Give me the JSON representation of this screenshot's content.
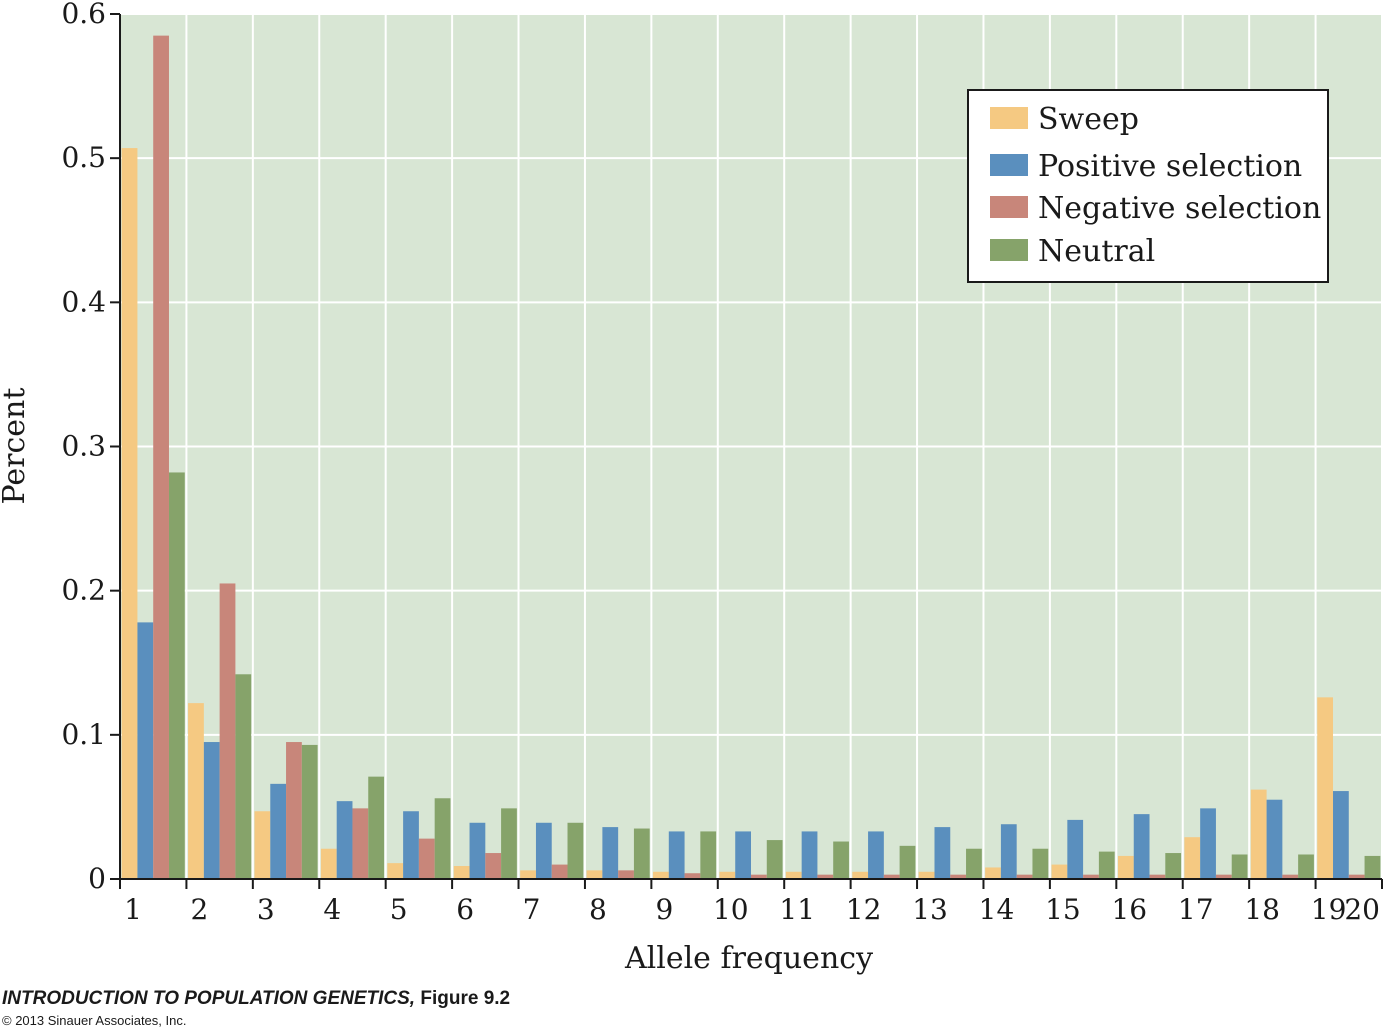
{
  "chart_data": {
    "type": "bar",
    "xlabel": "Allele frequency",
    "ylabel": "Percent",
    "x_ticks": [
      "1",
      "2",
      "3",
      "4",
      "5",
      "6",
      "7",
      "8",
      "9",
      "10",
      "11",
      "12",
      "13",
      "14",
      "15",
      "16",
      "17",
      "18",
      "19",
      "20"
    ],
    "y_ticks": [
      "0",
      "0.1",
      "0.2",
      "0.3",
      "0.4",
      "0.5",
      "0.6"
    ],
    "ylim": [
      0,
      0.6
    ],
    "grid": true,
    "legend_position": "top-right",
    "categories": [
      "1",
      "2",
      "3",
      "4",
      "5",
      "6",
      "7",
      "8",
      "9",
      "10",
      "11",
      "12",
      "13",
      "14",
      "15",
      "16",
      "17",
      "18",
      "19"
    ],
    "series": [
      {
        "name": "Sweep",
        "color": "#f5c982",
        "values": [
          0.507,
          0.122,
          0.047,
          0.021,
          0.011,
          0.009,
          0.006,
          0.006,
          0.005,
          0.005,
          0.005,
          0.005,
          0.005,
          0.008,
          0.01,
          0.016,
          0.029,
          0.062,
          0.126
        ]
      },
      {
        "name": "Positive selection",
        "color": "#5a8fbe",
        "values": [
          0.178,
          0.095,
          0.066,
          0.054,
          0.047,
          0.039,
          0.039,
          0.036,
          0.033,
          0.033,
          0.033,
          0.033,
          0.036,
          0.038,
          0.041,
          0.045,
          0.049,
          0.055,
          0.061
        ]
      },
      {
        "name": "Negative selection",
        "color": "#c8867a",
        "values": [
          0.585,
          0.205,
          0.095,
          0.049,
          0.028,
          0.018,
          0.01,
          0.006,
          0.004,
          0.003,
          0.003,
          0.003,
          0.003,
          0.003,
          0.003,
          0.003,
          0.003,
          0.003,
          0.003
        ]
      },
      {
        "name": "Neutral",
        "color": "#86a36a",
        "values": [
          0.282,
          0.142,
          0.093,
          0.071,
          0.056,
          0.049,
          0.039,
          0.035,
          0.033,
          0.027,
          0.026,
          0.023,
          0.021,
          0.021,
          0.019,
          0.018,
          0.017,
          0.017,
          0.016
        ]
      }
    ],
    "background_color": "#d8e6d4",
    "grid_color": "#ffffff"
  },
  "footer": {
    "title": "INTRODUCTION TO POPULATION GENETICS,",
    "figure": "Figure 9.2",
    "copyright": "© 2013 Sinauer Associates, Inc."
  }
}
